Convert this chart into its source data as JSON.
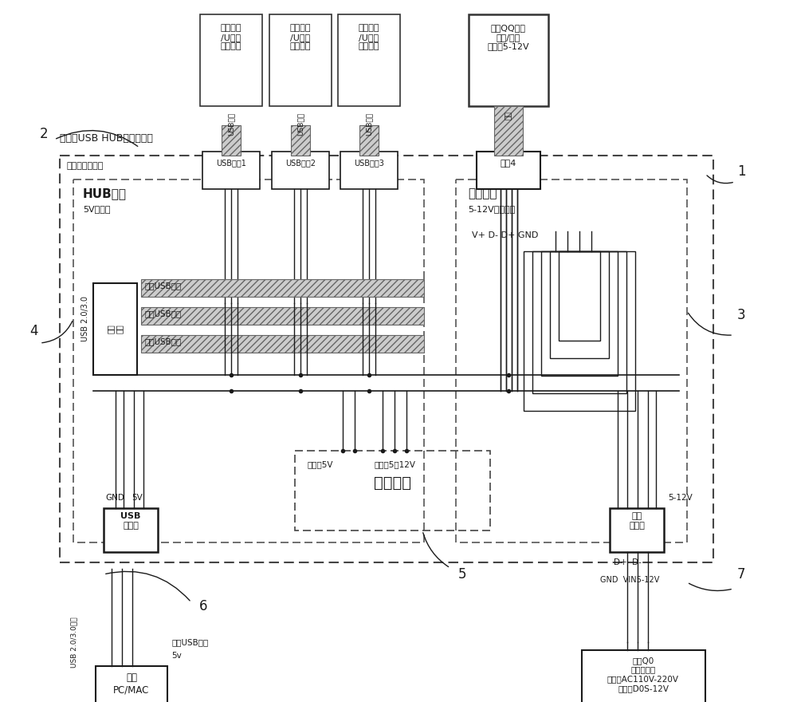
{
  "bg": "#ffffff",
  "lc": "#1a1a1a",
  "devices": [
    "移动硬盘\n/U盘等\n数据外设",
    "移动硬盘\n/U盘等\n数据外设",
    "移动硬盘\n/U盘等\n数据外设",
    "支持QQ快充\n手机/设备\n输入：5-12V"
  ],
  "port_labels": [
    "USB接口1",
    "USB接口2",
    "USB接口3",
    "接口4"
  ],
  "hub_label": "HUB电路",
  "hub_sub": "5V电压区",
  "shunt_label": "分流电路",
  "shunt_sub": "5-12V动态电压",
  "outer_label": "多功能USB HUB（集线器）",
  "board_label": "整个电路板区域",
  "branch_labels": [
    "分支USB线组",
    "分支USB线组",
    "分支USB线组"
  ],
  "vdgnd": "V+ D- D+ GND",
  "reg_label": "稳压电路",
  "reg_out": "输出：5V",
  "reg_in": "输入：5－12V",
  "usb_in_label": "USB\n输入口",
  "pwr_in_label": "电源\n输入口",
  "gnd_lbl": "GND",
  "fivev_lbl": "5V",
  "usb_cable_lbl": "USB 2.0/3.0",
  "pc_label": "电脑\nPC/MAC",
  "pc_port_lbl": "电脑USB接口",
  "fivev_pc": "5v",
  "adapter_lbl": "标准Q0\n快充适配器\n输入：AC110V-220V\n输出：D0S-12V",
  "power_512v": "5-12V",
  "dp_dm": "D+ D-",
  "gnd_vin": "GND  VIN5-12V",
  "usb23_cable": "USB 2.0/3.0线缆",
  "nums": [
    "1",
    "2",
    "3",
    "4",
    "5",
    "6",
    "7"
  ]
}
